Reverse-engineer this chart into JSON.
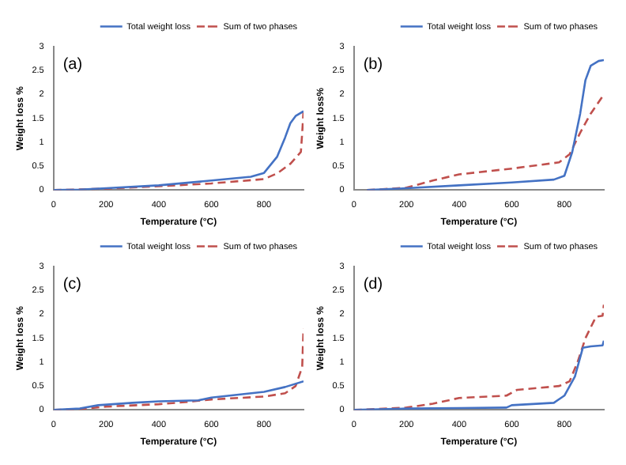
{
  "chart_data": [
    {
      "type": "line",
      "annotations": [
        "(a)"
      ],
      "xlabel": "Temperature (°C)",
      "ylabel": "Weight loss %",
      "xlim": [
        0,
        950
      ],
      "xticks": [
        0,
        200,
        400,
        600,
        800
      ],
      "ylim": [
        0,
        3
      ],
      "yticks": [
        0,
        0.5,
        1,
        1.5,
        2,
        2.5,
        3
      ],
      "grid": false,
      "legend": "top right",
      "marker": "none",
      "series": [
        {
          "name": "Total weight loss",
          "color": "#4472c4",
          "line_style": "solid",
          "x": [
            0,
            100,
            200,
            400,
            600,
            750,
            800,
            850,
            880,
            900,
            920,
            950
          ],
          "values": [
            0,
            0.01,
            0.04,
            0.1,
            0.2,
            0.28,
            0.36,
            0.7,
            1.1,
            1.4,
            1.55,
            1.65
          ]
        },
        {
          "name": "Sum of two phases",
          "color": "#c0504d",
          "line_style": "dashed",
          "x": [
            0,
            200,
            400,
            600,
            800,
            850,
            900,
            940,
            945,
            950
          ],
          "values": [
            0,
            0.03,
            0.08,
            0.14,
            0.23,
            0.35,
            0.55,
            0.8,
            1.2,
            1.65
          ]
        }
      ]
    },
    {
      "type": "line",
      "annotations": [
        "(b)"
      ],
      "xlabel": "Temperature (°C)",
      "ylabel": "Weight loss%",
      "xlim": [
        0,
        950
      ],
      "xticks": [
        0,
        200,
        400,
        600,
        800
      ],
      "ylim": [
        0,
        3
      ],
      "yticks": [
        0,
        0.5,
        1,
        1.5,
        2,
        2.5,
        3
      ],
      "grid": false,
      "legend": "top right",
      "marker": "none",
      "series": [
        {
          "name": "Total weight loss",
          "color": "#4472c4",
          "line_style": "solid",
          "x": [
            50,
            200,
            400,
            600,
            760,
            800,
            830,
            860,
            880,
            900,
            930,
            950
          ],
          "values": [
            0,
            0.04,
            0.1,
            0.16,
            0.22,
            0.3,
            0.8,
            1.6,
            2.3,
            2.6,
            2.7,
            2.72
          ]
        },
        {
          "name": "Sum of two phases",
          "color": "#c0504d",
          "line_style": "dashed",
          "x": [
            50,
            200,
            300,
            400,
            600,
            780,
            820,
            860,
            900,
            950
          ],
          "values": [
            0,
            0.05,
            0.2,
            0.33,
            0.45,
            0.58,
            0.75,
            1.2,
            1.6,
            2.0
          ]
        }
      ]
    },
    {
      "type": "line",
      "annotations": [
        "(c)"
      ],
      "xlabel": "Temperature (°C)",
      "ylabel": "Weight loss %",
      "xlim": [
        0,
        950
      ],
      "xticks": [
        0,
        200,
        400,
        600,
        800
      ],
      "ylim": [
        0,
        3
      ],
      "yticks": [
        0,
        0.5,
        1,
        1.5,
        2,
        2.5,
        3
      ],
      "grid": false,
      "legend": "top right",
      "marker": "none",
      "series": [
        {
          "name": "Total weight loss",
          "color": "#4472c4",
          "line_style": "solid",
          "x": [
            0,
            100,
            170,
            300,
            400,
            550,
            600,
            800,
            880,
            950
          ],
          "values": [
            0,
            0.03,
            0.1,
            0.15,
            0.18,
            0.2,
            0.26,
            0.38,
            0.48,
            0.6
          ]
        },
        {
          "name": "Sum of two phases",
          "color": "#c0504d",
          "line_style": "dashed",
          "x": [
            0,
            100,
            200,
            400,
            530,
            600,
            800,
            880,
            920,
            945,
            950
          ],
          "values": [
            0,
            0.02,
            0.07,
            0.12,
            0.18,
            0.22,
            0.28,
            0.35,
            0.5,
            0.9,
            1.7
          ]
        }
      ]
    },
    {
      "type": "line",
      "annotations": [
        "(d)"
      ],
      "xlabel": "Temperature (°C)",
      "ylabel": "Weight loss %",
      "xlim": [
        0,
        950
      ],
      "xticks": [
        0,
        200,
        400,
        600,
        800
      ],
      "ylim": [
        0,
        3
      ],
      "yticks": [
        0,
        0.5,
        1,
        1.5,
        2,
        2.5,
        3
      ],
      "grid": false,
      "legend": "top right",
      "marker": "none",
      "series": [
        {
          "name": "Total weight loss",
          "color": "#4472c4",
          "line_style": "solid",
          "x": [
            0,
            200,
            400,
            580,
            600,
            760,
            800,
            840,
            870,
            900,
            945,
            950
          ],
          "values": [
            0,
            0.03,
            0.04,
            0.05,
            0.1,
            0.15,
            0.3,
            0.7,
            1.3,
            1.33,
            1.35,
            1.45
          ]
        },
        {
          "name": "Sum of two phases",
          "color": "#c0504d",
          "line_style": "dashed",
          "x": [
            0,
            200,
            300,
            400,
            580,
            620,
            780,
            820,
            850,
            880,
            920,
            945,
            950
          ],
          "values": [
            0,
            0.05,
            0.13,
            0.25,
            0.3,
            0.42,
            0.5,
            0.6,
            1.0,
            1.5,
            1.95,
            1.97,
            2.2
          ]
        }
      ]
    }
  ]
}
